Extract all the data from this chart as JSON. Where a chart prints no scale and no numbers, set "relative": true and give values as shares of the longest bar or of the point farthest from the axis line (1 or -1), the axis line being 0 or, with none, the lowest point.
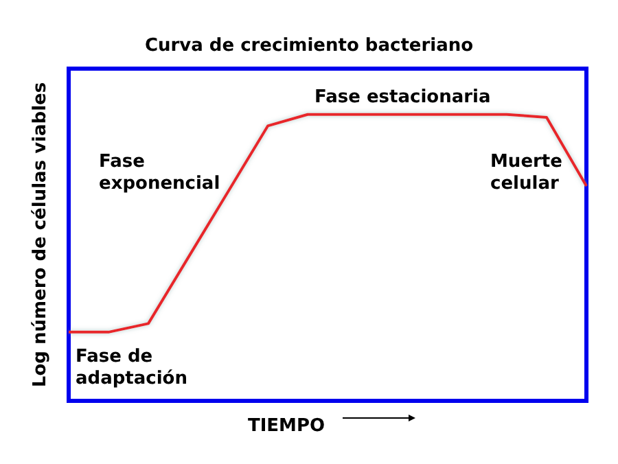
{
  "chart_data": {
    "type": "line",
    "title": "Curva de crecimiento bacteriano",
    "xlabel": "TIEMPO",
    "ylabel": "Log número de células viables",
    "categories": [
      null,
      null,
      null,
      null,
      null,
      null,
      null,
      null,
      null,
      null,
      null,
      null,
      null,
      null
    ],
    "values": [
      0.24,
      0.24,
      0.27,
      0.5,
      0.73,
      0.96,
      1,
      1,
      1,
      1,
      1,
      1,
      0.99,
      0.75
    ],
    "color": "#e8262a",
    "relative": true,
    "grid": false,
    "tick_labels": false,
    "marker": "none",
    "line_style": "solid",
    "annotations": [
      "Fase de\nadaptación",
      "Fase\nexponencial",
      "Fase estacionaria",
      "Muerte\ncelular"
    ]
  }
}
